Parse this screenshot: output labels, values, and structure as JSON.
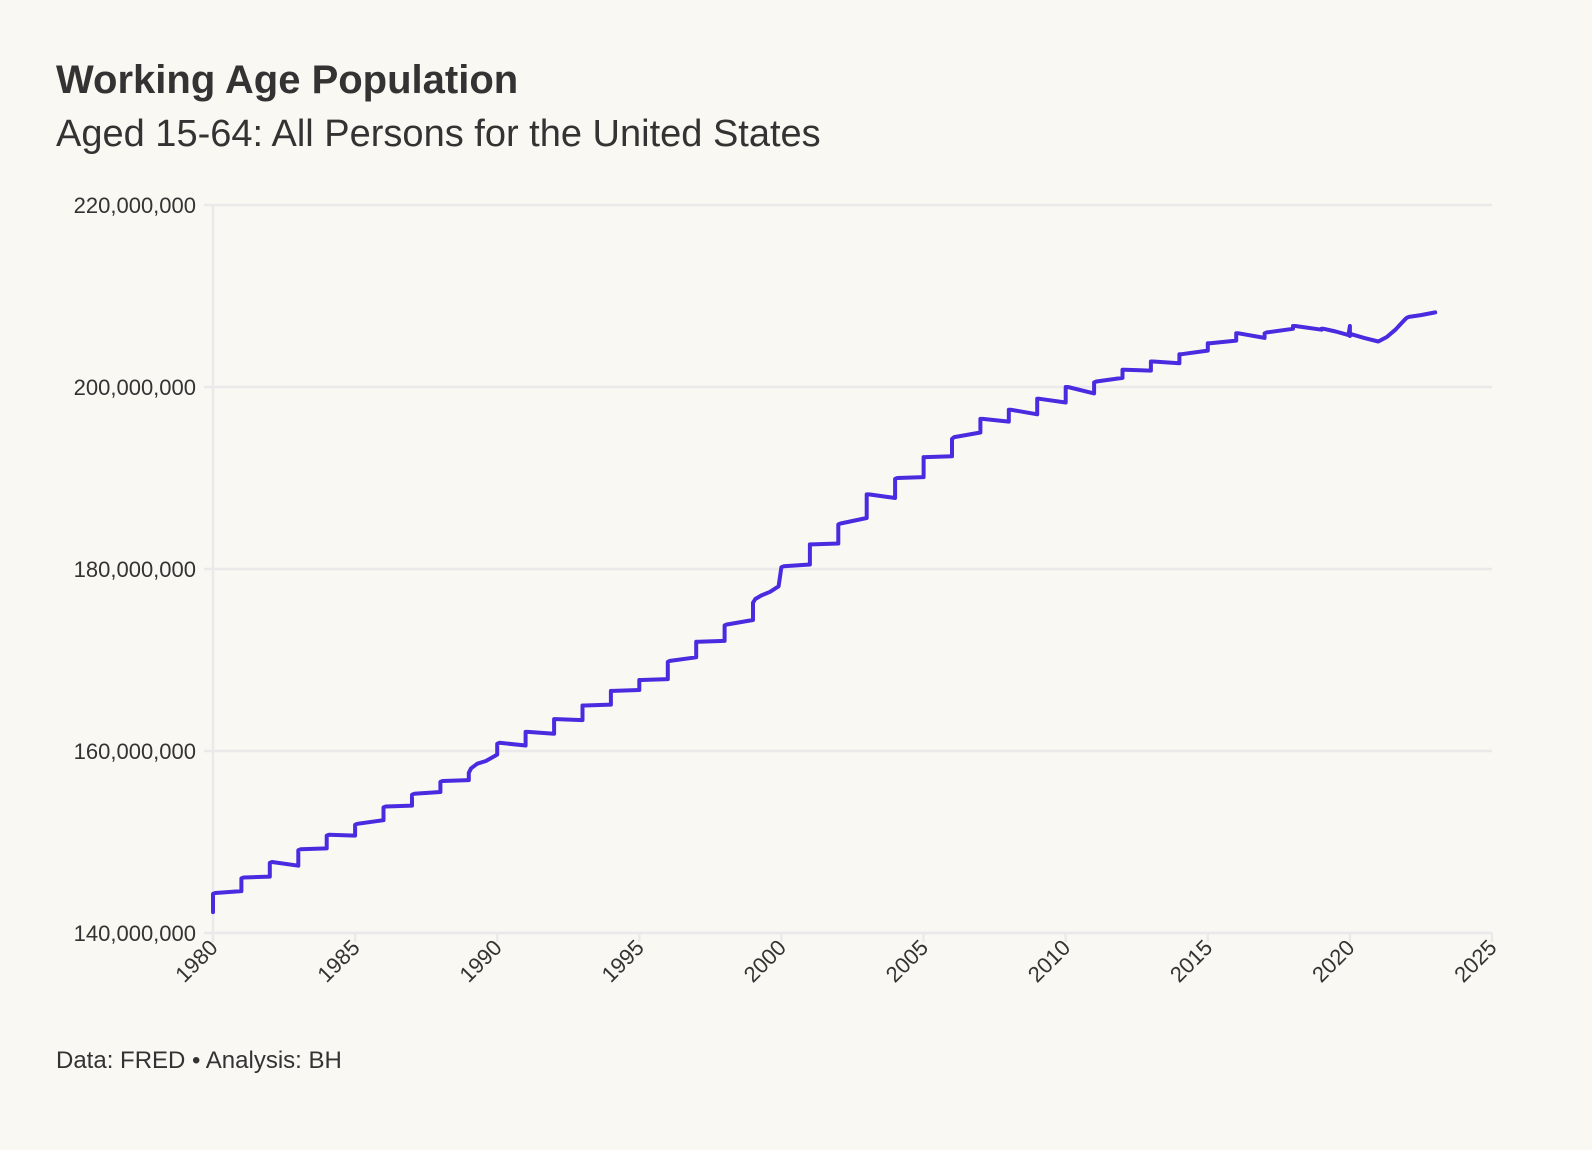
{
  "chart_data": {
    "type": "line",
    "title": "Working Age Population",
    "subtitle": "Aged 15-64: All Persons for the United States",
    "caption": "Data: FRED • Analysis: BH",
    "xlabel": "",
    "ylabel": "",
    "xlim": [
      1980,
      2025
    ],
    "ylim": [
      140000000,
      220000000
    ],
    "x_ticks": [
      1980,
      1985,
      1990,
      1995,
      2000,
      2005,
      2010,
      2015,
      2020,
      2025
    ],
    "x_tick_labels": [
      "1980",
      "1985",
      "1990",
      "1995",
      "2000",
      "2005",
      "2010",
      "2015",
      "2020",
      "2025"
    ],
    "y_ticks": [
      140000000,
      160000000,
      180000000,
      200000000,
      220000000
    ],
    "y_tick_labels": [
      "140,000,000",
      "160,000,000",
      "180,000,000",
      "200,000,000",
      "220,000,000"
    ],
    "grid": "horizontal",
    "colors": {
      "series": "#4a2be0",
      "grid": "#ebeaeb",
      "background": "#faf8f3"
    },
    "series": [
      {
        "x": [
          1980.0,
          1980.0,
          1980.08,
          1981.0,
          1981.0,
          1981.08,
          1982.0,
          1982.0,
          1982.08,
          1983.0,
          1983.0,
          1983.08,
          1984.0,
          1984.0,
          1984.08,
          1985.0,
          1985.0,
          1985.08,
          1986.0,
          1986.0,
          1986.08,
          1987.0,
          1987.0,
          1987.08,
          1988.0,
          1988.0,
          1988.08,
          1989.0,
          1989.0,
          1989.08,
          1989.3,
          1989.6,
          1990.0,
          1990.0,
          1990.08,
          1991.0,
          1991.0,
          1991.08,
          1992.0,
          1992.0,
          1992.08,
          1993.0,
          1993.0,
          1993.08,
          1994.0,
          1994.0,
          1994.08,
          1995.0,
          1995.0,
          1995.08,
          1996.0,
          1996.0,
          1996.08,
          1997.0,
          1997.0,
          1997.08,
          1998.0,
          1998.0,
          1998.08,
          1999.0,
          1999.0,
          1999.08,
          1999.3,
          1999.6,
          1999.9,
          2000.0,
          2000.08,
          2001.0,
          2001.0,
          2001.08,
          2002.0,
          2002.0,
          2002.08,
          2003.0,
          2003.0,
          2003.08,
          2004.0,
          2004.0,
          2004.08,
          2005.0,
          2005.0,
          2005.08,
          2006.0,
          2006.0,
          2006.08,
          2007.0,
          2007.0,
          2007.08,
          2008.0,
          2008.0,
          2008.08,
          2009.0,
          2009.0,
          2009.08,
          2010.0,
          2010.0,
          2010.08,
          2011.0,
          2011.0,
          2011.08,
          2012.0,
          2012.0,
          2012.08,
          2013.0,
          2013.0,
          2013.08,
          2014.0,
          2014.0,
          2014.08,
          2015.0,
          2015.0,
          2015.08,
          2016.0,
          2016.0,
          2016.08,
          2017.0,
          2017.0,
          2017.08,
          2018.0,
          2018.0,
          2018.08,
          2019.0,
          2019.0,
          2019.08,
          2019.5,
          2019.95,
          2020.0,
          2020.0,
          2020.05,
          2020.5,
          2021.0,
          2021.3,
          2021.6,
          2021.9,
          2022.0,
          2022.08,
          2022.5,
          2023.0
        ],
        "y": [
          142300000,
          144300000,
          144400000,
          144600000,
          146000000,
          146100000,
          146200000,
          147700000,
          147800000,
          147400000,
          149100000,
          149200000,
          149300000,
          150700000,
          150800000,
          150700000,
          151900000,
          152000000,
          152400000,
          153800000,
          153900000,
          154000000,
          155200000,
          155300000,
          155500000,
          156600000,
          156700000,
          156800000,
          157600000,
          158100000,
          158600000,
          158900000,
          159600000,
          160800000,
          160900000,
          160600000,
          162100000,
          162100000,
          161900000,
          163500000,
          163500000,
          163400000,
          165000000,
          165000000,
          165100000,
          166600000,
          166600000,
          166700000,
          167800000,
          167800000,
          167900000,
          169800000,
          169900000,
          170300000,
          172000000,
          172000000,
          172100000,
          173800000,
          173900000,
          174400000,
          176300000,
          176700000,
          177100000,
          177500000,
          178100000,
          180200000,
          180300000,
          180500000,
          182700000,
          182700000,
          182800000,
          184900000,
          185000000,
          185600000,
          188200000,
          188200000,
          187800000,
          189900000,
          190000000,
          190100000,
          192300000,
          192300000,
          192400000,
          194300000,
          194500000,
          195000000,
          196500000,
          196500000,
          196200000,
          197500000,
          197500000,
          197000000,
          198700000,
          198700000,
          198300000,
          200000000,
          200000000,
          199300000,
          200500000,
          200600000,
          201000000,
          201900000,
          201900000,
          201800000,
          202800000,
          202800000,
          202600000,
          203600000,
          203600000,
          204000000,
          204800000,
          204800000,
          205100000,
          205900000,
          205900000,
          205400000,
          205900000,
          206000000,
          206400000,
          206700000,
          206700000,
          206300000,
          206400000,
          206400000,
          206100000,
          205700000,
          206700000,
          205600000,
          205800000,
          205400000,
          205000000,
          205500000,
          206300000,
          207300000,
          207600000,
          207700000,
          207900000,
          208200000
        ]
      }
    ]
  }
}
